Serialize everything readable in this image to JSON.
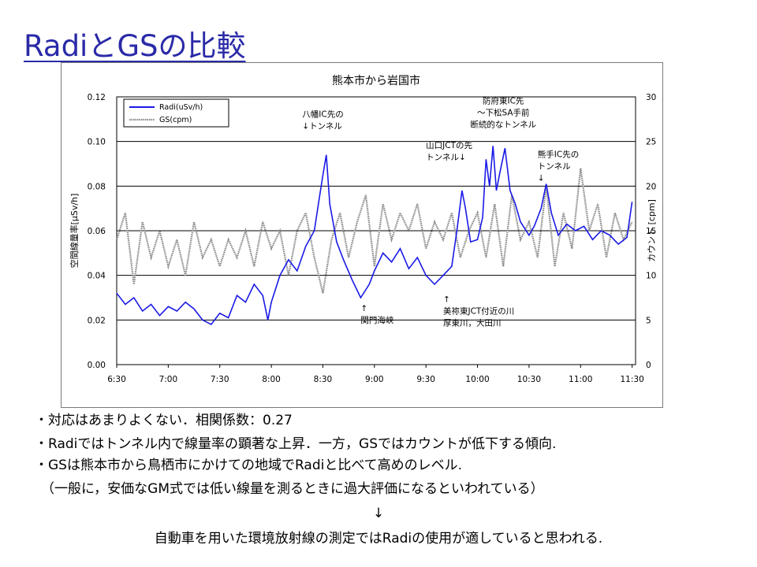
{
  "slide": {
    "title": "RadiとGSの比較",
    "notes": [
      "・対応はあまりよくない．相関係数：0.27",
      "・Radiではトンネル内で線量率の顕著な上昇．一方，GSではカウントが低下する傾向.",
      "・GSは熊本市から鳥栖市にかけての地域でRadiと比べて高めのレベル.",
      "（一般に，安価なGM式では低い線量を測るときに過大評価になるといわれている）",
      "↓",
      "自動車を用いた環境放射線の測定ではRadiの使用が適していると思われる."
    ],
    "colors": {
      "title": "#2a2aa8",
      "radi": "#1a1ae6",
      "gs": "#8c8c8c"
    }
  },
  "chart_data": {
    "type": "line",
    "title": "熊本市から岩国市",
    "ylabel": "空間線量率[μSv/h]",
    "y2label": "カウント [cpm]",
    "x_ticks": [
      "6:30",
      "7:00",
      "7:30",
      "8:00",
      "8:30",
      "9:00",
      "9:30",
      "10:00",
      "10:30",
      "11:00",
      "11:30"
    ],
    "x_range": [
      "6:30",
      "11:32"
    ],
    "y_range": [
      0,
      0.12
    ],
    "y_ticks": [
      "0.00",
      "0.02",
      "0.04",
      "0.06",
      "0.08",
      "0.10",
      "0.12"
    ],
    "y2_range": [
      0,
      30
    ],
    "y2_ticks": [
      "0",
      "5",
      "10",
      "15",
      "20",
      "25",
      "30"
    ],
    "grid": "horizontal",
    "legend_position": "top-left",
    "series": [
      {
        "name": "Radi(uSv/h)",
        "axis": "left",
        "color": "#1a1ae6",
        "points": [
          [
            "6:30",
            0.032
          ],
          [
            "6:35",
            0.027
          ],
          [
            "6:40",
            0.03
          ],
          [
            "6:45",
            0.024
          ],
          [
            "6:50",
            0.027
          ],
          [
            "6:55",
            0.022
          ],
          [
            "7:00",
            0.026
          ],
          [
            "7:05",
            0.024
          ],
          [
            "7:10",
            0.028
          ],
          [
            "7:15",
            0.025
          ],
          [
            "7:20",
            0.02
          ],
          [
            "7:25",
            0.018
          ],
          [
            "7:30",
            0.023
          ],
          [
            "7:35",
            0.021
          ],
          [
            "7:40",
            0.031
          ],
          [
            "7:45",
            0.028
          ],
          [
            "7:50",
            0.036
          ],
          [
            "7:55",
            0.031
          ],
          [
            "7:58",
            0.02
          ],
          [
            "8:00",
            0.028
          ],
          [
            "8:05",
            0.04
          ],
          [
            "8:10",
            0.047
          ],
          [
            "8:15",
            0.042
          ],
          [
            "8:20",
            0.053
          ],
          [
            "8:25",
            0.06
          ],
          [
            "8:28",
            0.075
          ],
          [
            "8:30",
            0.085
          ],
          [
            "8:32",
            0.094
          ],
          [
            "8:34",
            0.072
          ],
          [
            "8:38",
            0.055
          ],
          [
            "8:42",
            0.047
          ],
          [
            "8:47",
            0.038
          ],
          [
            "8:52",
            0.03
          ],
          [
            "8:57",
            0.036
          ],
          [
            "9:00",
            0.042
          ],
          [
            "9:05",
            0.05
          ],
          [
            "9:10",
            0.046
          ],
          [
            "9:15",
            0.052
          ],
          [
            "9:20",
            0.043
          ],
          [
            "9:25",
            0.048
          ],
          [
            "9:30",
            0.04
          ],
          [
            "9:35",
            0.036
          ],
          [
            "9:40",
            0.04
          ],
          [
            "9:45",
            0.044
          ],
          [
            "9:48",
            0.06
          ],
          [
            "9:51",
            0.078
          ],
          [
            "9:53",
            0.07
          ],
          [
            "9:56",
            0.055
          ],
          [
            "10:00",
            0.056
          ],
          [
            "10:03",
            0.066
          ],
          [
            "10:05",
            0.092
          ],
          [
            "10:07",
            0.08
          ],
          [
            "10:09",
            0.098
          ],
          [
            "10:11",
            0.078
          ],
          [
            "10:13",
            0.086
          ],
          [
            "10:16",
            0.097
          ],
          [
            "10:19",
            0.078
          ],
          [
            "10:22",
            0.072
          ],
          [
            "10:25",
            0.064
          ],
          [
            "10:30",
            0.058
          ],
          [
            "10:33",
            0.062
          ],
          [
            "10:37",
            0.07
          ],
          [
            "10:40",
            0.081
          ],
          [
            "10:43",
            0.068
          ],
          [
            "10:47",
            0.058
          ],
          [
            "10:52",
            0.063
          ],
          [
            "10:57",
            0.06
          ],
          [
            "11:02",
            0.062
          ],
          [
            "11:07",
            0.056
          ],
          [
            "11:12",
            0.06
          ],
          [
            "11:17",
            0.058
          ],
          [
            "11:22",
            0.054
          ],
          [
            "11:27",
            0.057
          ],
          [
            "11:30",
            0.073
          ]
        ]
      },
      {
        "name": "GS(cpm)",
        "axis": "right",
        "color": "#8c8c8c",
        "points": [
          [
            "6:30",
            14
          ],
          [
            "6:35",
            17
          ],
          [
            "6:40",
            9
          ],
          [
            "6:45",
            16
          ],
          [
            "6:50",
            12
          ],
          [
            "6:55",
            15
          ],
          [
            "7:00",
            11
          ],
          [
            "7:05",
            14
          ],
          [
            "7:10",
            10
          ],
          [
            "7:15",
            16
          ],
          [
            "7:20",
            12
          ],
          [
            "7:25",
            14
          ],
          [
            "7:30",
            11
          ],
          [
            "7:35",
            14
          ],
          [
            "7:40",
            12
          ],
          [
            "7:45",
            15
          ],
          [
            "7:50",
            11
          ],
          [
            "7:55",
            16
          ],
          [
            "8:00",
            13
          ],
          [
            "8:05",
            15
          ],
          [
            "8:10",
            10
          ],
          [
            "8:15",
            15
          ],
          [
            "8:20",
            17
          ],
          [
            "8:25",
            12
          ],
          [
            "8:30",
            8
          ],
          [
            "8:35",
            14
          ],
          [
            "8:40",
            17
          ],
          [
            "8:45",
            12
          ],
          [
            "8:50",
            16
          ],
          [
            "8:55",
            19
          ],
          [
            "9:00",
            11
          ],
          [
            "9:05",
            18
          ],
          [
            "9:10",
            14
          ],
          [
            "9:15",
            17
          ],
          [
            "9:20",
            15
          ],
          [
            "9:25",
            18
          ],
          [
            "9:30",
            13
          ],
          [
            "9:35",
            16
          ],
          [
            "9:40",
            14
          ],
          [
            "9:45",
            17
          ],
          [
            "9:50",
            12
          ],
          [
            "9:55",
            15
          ],
          [
            "10:00",
            17
          ],
          [
            "10:05",
            12
          ],
          [
            "10:10",
            18
          ],
          [
            "10:15",
            11
          ],
          [
            "10:20",
            19
          ],
          [
            "10:25",
            14
          ],
          [
            "10:30",
            16
          ],
          [
            "10:35",
            12
          ],
          [
            "10:40",
            20
          ],
          [
            "10:45",
            11
          ],
          [
            "10:50",
            17
          ],
          [
            "10:55",
            13
          ],
          [
            "11:00",
            22
          ],
          [
            "11:05",
            15
          ],
          [
            "11:10",
            18
          ],
          [
            "11:15",
            12
          ],
          [
            "11:20",
            17
          ],
          [
            "11:25",
            14
          ],
          [
            "11:30",
            16
          ]
        ]
      }
    ],
    "annotations": [
      {
        "lines": [
          "八幡IC先の",
          "↓トンネル"
        ],
        "at": [
          "8:18",
          0.111
        ],
        "anchor": "start"
      },
      {
        "lines": [
          "山口JCTの先",
          "トンネル↓"
        ],
        "at": [
          "9:30",
          0.097
        ],
        "anchor": "start"
      },
      {
        "lines": [
          "防府東IC先",
          "～下松SA手前",
          "断続的なトンネル"
        ],
        "at": [
          "10:15",
          0.117
        ],
        "anchor": "middle"
      },
      {
        "lines": [
          "熊手IC先の",
          "トンネル",
          "↓"
        ],
        "at": [
          "10:35",
          0.093
        ],
        "anchor": "start"
      },
      {
        "lines": [
          "↑",
          "関門海峡"
        ],
        "at": [
          "8:52",
          0.024
        ],
        "anchor": "start"
      },
      {
        "lines": [
          "↑",
          "美祢東JCT付近の川",
          "厚東川，大田川"
        ],
        "at": [
          "9:40",
          0.028
        ],
        "anchor": "start"
      }
    ]
  }
}
